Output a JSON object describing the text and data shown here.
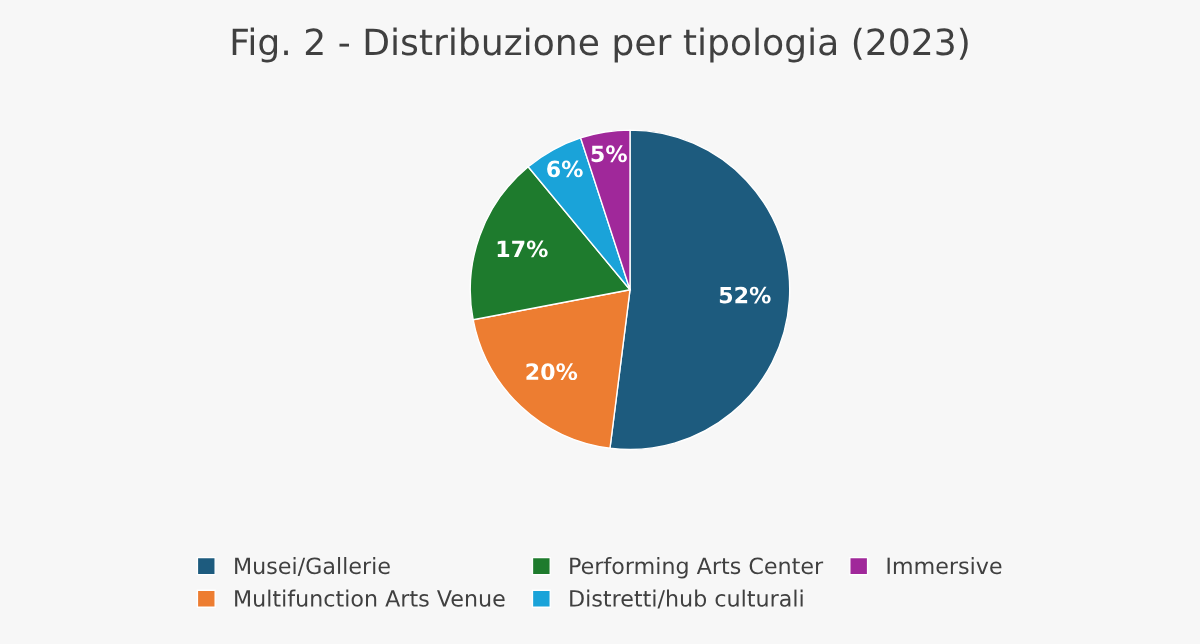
{
  "chart_data": {
    "type": "pie",
    "title": "Fig. 2 - Distribuzione per tipologia (2023)",
    "categories": [
      "Musei/Gallerie",
      "Multifunction Arts Venue",
      "Performing Arts Center",
      "Distretti/hub culturali",
      "Immersive"
    ],
    "values": [
      52,
      20,
      17,
      6,
      5
    ],
    "colors": [
      "#1d5b7e",
      "#ed7d31",
      "#1e7b2d",
      "#1aa3d9",
      "#a0289a"
    ],
    "value_labels": [
      "52%",
      "20%",
      "17%",
      "6%",
      "5%"
    ],
    "legend": "bottom"
  }
}
